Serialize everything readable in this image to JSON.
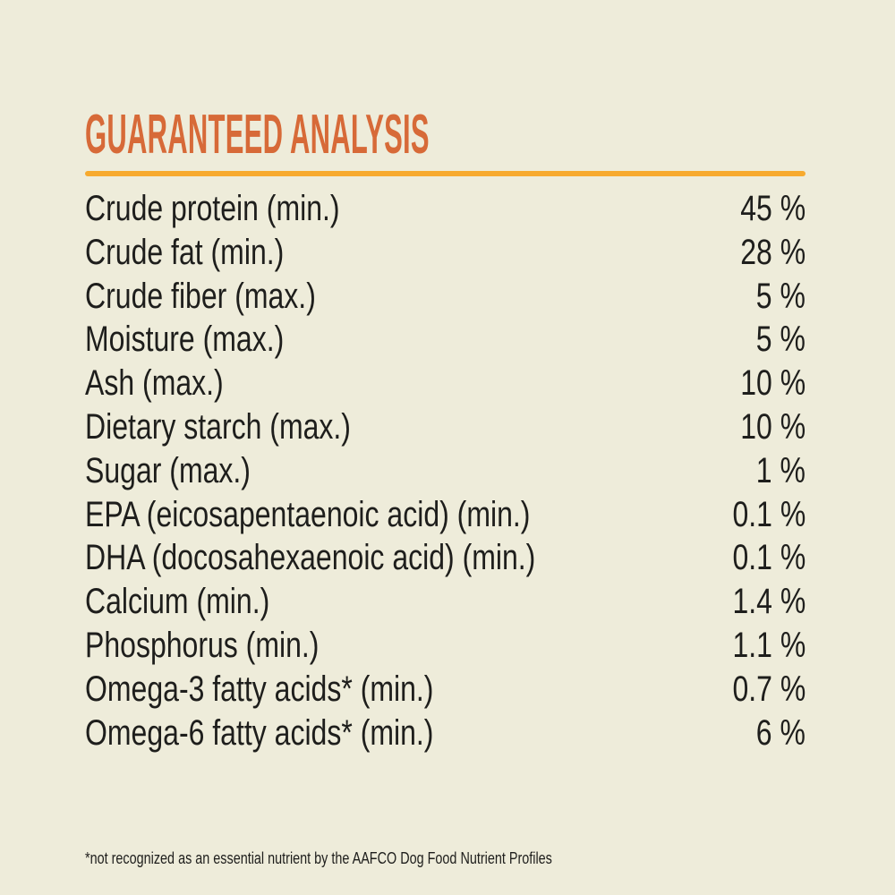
{
  "colors": {
    "background": "#eeecda",
    "title": "#d76a38",
    "divider": "#f7aa2e",
    "text": "#1e1e1c"
  },
  "header": {
    "title": "GUARANTEED ANALYSIS"
  },
  "table": {
    "rows": [
      {
        "label": "Crude protein (min.)",
        "value": "45 %"
      },
      {
        "label": "Crude fat (min.)",
        "value": "28 %"
      },
      {
        "label": "Crude fiber (max.)",
        "value": "5 %"
      },
      {
        "label": "Moisture (max.)",
        "value": "5 %"
      },
      {
        "label": "Ash (max.)",
        "value": "10 %"
      },
      {
        "label": "Dietary starch (max.)",
        "value": "10 %"
      },
      {
        "label": "Sugar (max.)",
        "value": "1 %"
      },
      {
        "label": "EPA (eicosapentaenoic acid) (min.)",
        "value": "0.1 %"
      },
      {
        "label": "DHA (docosahexaenoic acid) (min.)",
        "value": "0.1 %"
      },
      {
        "label": "Calcium (min.)",
        "value": "1.4 %"
      },
      {
        "label": "Phosphorus (min.)",
        "value": "1.1 %"
      },
      {
        "label": "Omega-3 fatty acids* (min.)",
        "value": "0.7 %"
      },
      {
        "label": "Omega-6 fatty acids* (min.)",
        "value": "6 %"
      }
    ]
  },
  "footnote": "*not recognized as an essential nutrient by the AAFCO Dog Food Nutrient Profiles"
}
